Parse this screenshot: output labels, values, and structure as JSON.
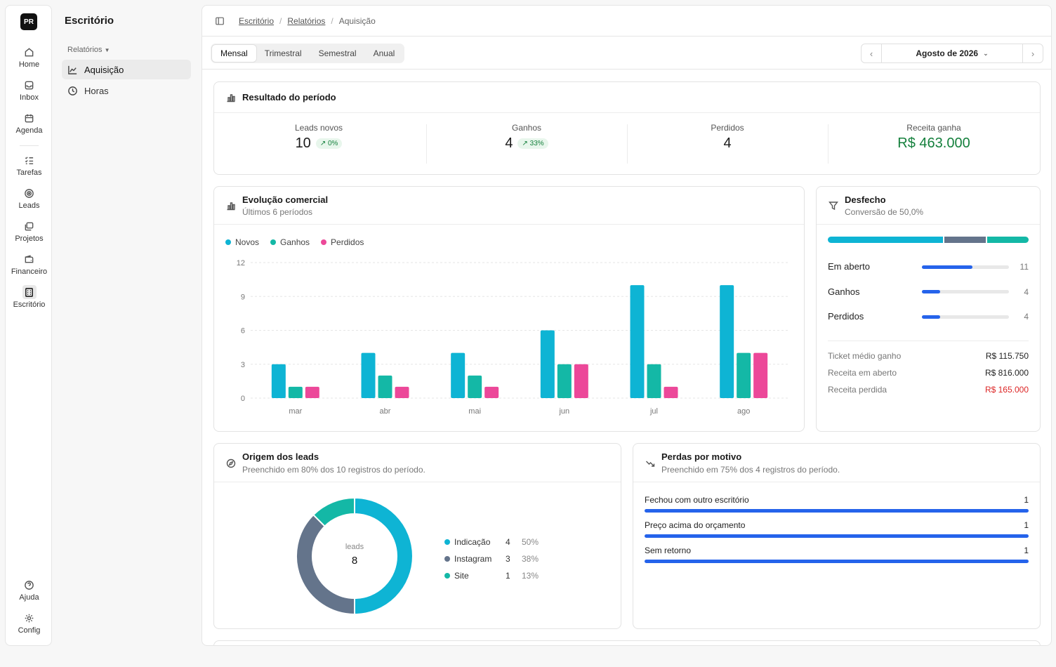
{
  "rail": {
    "logo": "PR",
    "items": [
      {
        "label": "Home"
      },
      {
        "label": "Inbox"
      },
      {
        "label": "Agenda"
      },
      {
        "label": "Tarefas"
      },
      {
        "label": "Leads"
      },
      {
        "label": "Projetos"
      },
      {
        "label": "Financeiro"
      },
      {
        "label": "Escritório"
      }
    ],
    "bottom": [
      {
        "label": "Ajuda"
      },
      {
        "label": "Config"
      }
    ]
  },
  "sidebar": {
    "title": "Escritório",
    "group": "Relatórios",
    "items": [
      {
        "label": "Aquisição"
      },
      {
        "label": "Horas"
      }
    ]
  },
  "breadcrumb": [
    "Escritório",
    "Relatórios",
    "Aquisição"
  ],
  "periods": [
    "Mensal",
    "Trimestral",
    "Semestral",
    "Anual"
  ],
  "date_nav": {
    "label": "Agosto de 2026"
  },
  "result": {
    "title": "Resultado do período",
    "kpis": [
      {
        "label": "Leads novos",
        "value": "10",
        "badge": "0%"
      },
      {
        "label": "Ganhos",
        "value": "4",
        "badge": "33%"
      },
      {
        "label": "Perdidos",
        "value": "4"
      },
      {
        "label": "Receita ganha",
        "value": "R$ 463.000"
      }
    ]
  },
  "evolution": {
    "title": "Evolução comercial",
    "subtitle": "Últimos 6 períodos"
  },
  "chart_data": {
    "type": "bar",
    "categories": [
      "mar",
      "abr",
      "mai",
      "jun",
      "jul",
      "ago"
    ],
    "series": [
      {
        "name": "Novos",
        "color": "#0eb4d4",
        "values": [
          3,
          4,
          4,
          6,
          10,
          10
        ]
      },
      {
        "name": "Ganhos",
        "color": "#14b8a6",
        "values": [
          1,
          2,
          2,
          3,
          3,
          4
        ]
      },
      {
        "name": "Perdidos",
        "color": "#ec4899",
        "values": [
          1,
          1,
          1,
          3,
          1,
          4
        ]
      }
    ],
    "yticks": [
      "0",
      "3",
      "6",
      "9",
      "12"
    ],
    "ylim": [
      0,
      12
    ],
    "grid": true,
    "legend": "top-left"
  },
  "outcome": {
    "title": "Desfecho",
    "subtitle": "Conversão de 50,0%",
    "rows": [
      {
        "label": "Em aberto",
        "count": "11",
        "fraction": 0.58
      },
      {
        "label": "Ganhos",
        "count": "4",
        "fraction": 0.21
      },
      {
        "label": "Perdidos",
        "count": "4",
        "fraction": 0.21
      }
    ],
    "stats": [
      {
        "label": "Ticket médio ganho",
        "value": "R$ 115.750"
      },
      {
        "label": "Receita em aberto",
        "value": "R$ 816.000"
      },
      {
        "label": "Receita perdida",
        "value": "R$ 165.000"
      }
    ]
  },
  "origin": {
    "title": "Origem dos leads",
    "subtitle": "Preenchido em 80% dos 10 registros do período.",
    "center_label": "leads",
    "center_value": "8",
    "items": [
      {
        "label": "Indicação",
        "count": "4",
        "pct": "50%",
        "color": "#0eb4d4",
        "value": 4
      },
      {
        "label": "Instagram",
        "count": "3",
        "pct": "38%",
        "color": "#64748b",
        "value": 3
      },
      {
        "label": "Site",
        "count": "1",
        "pct": "13%",
        "color": "#14b8a6",
        "value": 1
      }
    ]
  },
  "losses": {
    "title": "Perdas por motivo",
    "subtitle": "Preenchido em 75% dos 4 registros do período.",
    "rows": [
      {
        "label": "Fechou com outro escritório",
        "count": "1",
        "fraction": 1
      },
      {
        "label": "Preço acima do orçamento",
        "count": "1",
        "fraction": 1
      },
      {
        "label": "Sem retorno",
        "count": "1",
        "fraction": 1
      }
    ]
  },
  "colors": {
    "positive": "#15803d",
    "negative": "#dc2626",
    "accent": "#2563eb"
  }
}
